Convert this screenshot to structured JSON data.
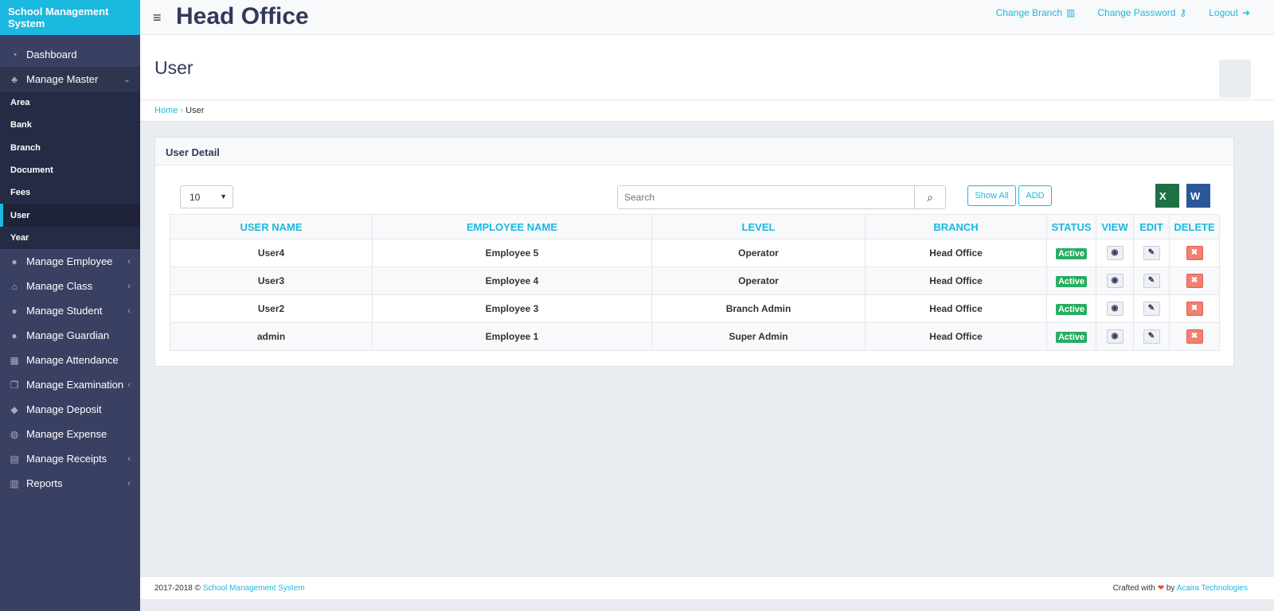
{
  "app": {
    "brand": "School Management System",
    "branch_title": "Head Office"
  },
  "topbar": {
    "change_branch": "Change Branch",
    "change_password": "Change Password",
    "logout": "Logout"
  },
  "sidebar": {
    "items": [
      {
        "label": "Dashboard",
        "icon": "dashboard-icon",
        "glyph": "◔"
      },
      {
        "label": "Manage Master",
        "icon": "sitemap-icon",
        "glyph": "♣",
        "chev": "⌄"
      },
      {
        "label": "Manage Employee",
        "icon": "user-icon",
        "glyph": "●",
        "chev": "‹"
      },
      {
        "label": "Manage Class",
        "icon": "home-icon",
        "glyph": "⌂",
        "chev": "‹"
      },
      {
        "label": "Manage Student",
        "icon": "users-icon",
        "glyph": "●",
        "chev": "‹"
      },
      {
        "label": "Manage Guardian",
        "icon": "user-friends-icon",
        "glyph": "●"
      },
      {
        "label": "Manage Attendance",
        "icon": "table-icon",
        "glyph": "▦"
      },
      {
        "label": "Manage Examination",
        "icon": "copy-icon",
        "glyph": "❐",
        "chev": "‹"
      },
      {
        "label": "Manage Deposit",
        "icon": "ticket-icon",
        "glyph": "◆"
      },
      {
        "label": "Manage Expense",
        "icon": "money-icon",
        "glyph": "◍"
      },
      {
        "label": "Manage Receipts",
        "icon": "file-icon",
        "glyph": "▤",
        "chev": "‹"
      },
      {
        "label": "Reports",
        "icon": "bar-chart-icon",
        "glyph": "▥",
        "chev": "‹"
      }
    ],
    "sub_items": [
      "Area",
      "Bank",
      "Branch",
      "Document",
      "Fees",
      "User",
      "Year"
    ],
    "active_sub": "User"
  },
  "page": {
    "title": "User",
    "breadcrumb": [
      "Home",
      "User"
    ]
  },
  "card": {
    "title": "User Detail",
    "page_size": "10",
    "search_placeholder": "Search",
    "show_all": "Show All",
    "add": "ADD",
    "excel": "X",
    "word": "W"
  },
  "table": {
    "headers": [
      "USER NAME",
      "EMPLOYEE NAME",
      "LEVEL",
      "BRANCH",
      "STATUS",
      "VIEW",
      "EDIT",
      "DELETE"
    ],
    "rows": [
      [
        "User4",
        "Employee 5",
        "Operator",
        "Head Office",
        "Active"
      ],
      [
        "User3",
        "Employee 4",
        "Operator",
        "Head Office",
        "Active"
      ],
      [
        "User2",
        "Employee 3",
        "Branch Admin",
        "Head Office",
        "Active"
      ],
      [
        "admin",
        "Employee 1",
        "Super Admin",
        "Head Office",
        "Active"
      ]
    ]
  },
  "footer": {
    "copyright": "2017-2018 ©",
    "system_link": "School Management System",
    "crafted": "Crafted with",
    "heart": "❤",
    "by": "by",
    "company": "Acaira Technologies"
  },
  "colors": {
    "accent": "#1bb8e0",
    "sidebar": "#3a4062",
    "active": "#27ae60",
    "delete": "#f08070"
  }
}
